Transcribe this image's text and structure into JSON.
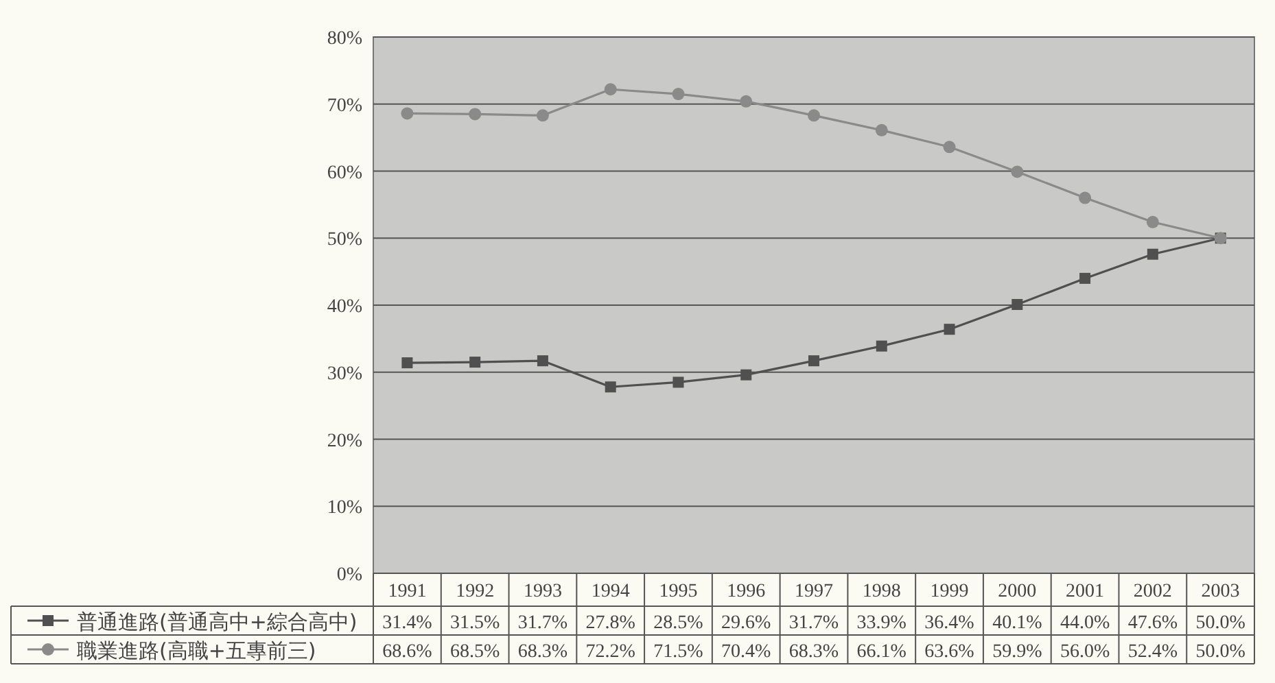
{
  "chart_data": {
    "type": "line",
    "categories": [
      "1991",
      "1992",
      "1993",
      "1994",
      "1995",
      "1996",
      "1997",
      "1998",
      "1999",
      "2000",
      "2001",
      "2002",
      "2003"
    ],
    "series": [
      {
        "name": "普通進路(普通高中+綜合高中)",
        "color": "#505050",
        "marker": "square",
        "values": [
          31.4,
          31.5,
          31.7,
          27.8,
          28.5,
          29.6,
          31.7,
          33.9,
          36.4,
          40.1,
          44.0,
          47.6,
          50.0
        ],
        "value_labels": [
          "31.4%",
          "31.5%",
          "31.7%",
          "27.8%",
          "28.5%",
          "29.6%",
          "31.7%",
          "33.9%",
          "36.4%",
          "40.1%",
          "44.0%",
          "47.6%",
          "50.0%"
        ]
      },
      {
        "name": "職業進路(高職+五專前三)",
        "color": "#8a8a8a",
        "marker": "circle",
        "values": [
          68.6,
          68.5,
          68.3,
          72.2,
          71.5,
          70.4,
          68.3,
          66.1,
          63.6,
          59.9,
          56.0,
          52.4,
          50.0
        ],
        "value_labels": [
          "68.6%",
          "68.5%",
          "68.3%",
          "72.2%",
          "71.5%",
          "70.4%",
          "68.3%",
          "66.1%",
          "63.6%",
          "59.9%",
          "56.0%",
          "52.4%",
          "50.0%"
        ]
      }
    ],
    "ylim": [
      0,
      80
    ],
    "yticks": [
      {
        "value": 0,
        "label": "0%"
      },
      {
        "value": 10,
        "label": "10%"
      },
      {
        "value": 20,
        "label": "20%"
      },
      {
        "value": 30,
        "label": "30%"
      },
      {
        "value": 40,
        "label": "40%"
      },
      {
        "value": 50,
        "label": "50%"
      },
      {
        "value": 60,
        "label": "60%"
      },
      {
        "value": 70,
        "label": "70%"
      },
      {
        "value": 80,
        "label": "80%"
      }
    ],
    "grid": "y",
    "legend": "bottom",
    "line_style": "solid"
  }
}
